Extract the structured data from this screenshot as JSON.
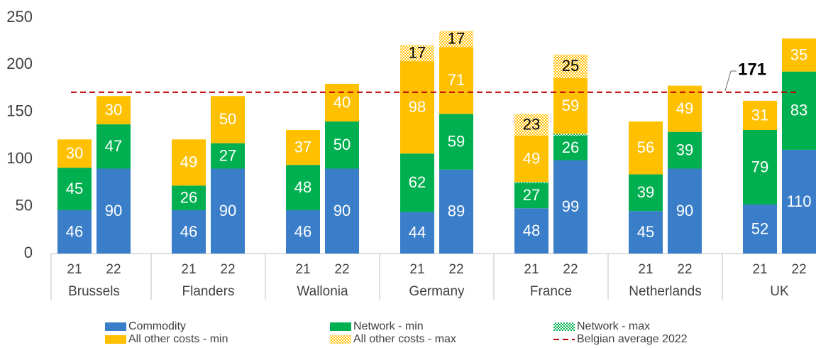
{
  "chart_data": {
    "type": "stacked_bar",
    "categories": [
      "21",
      "22",
      "21",
      "22",
      "21",
      "22",
      "21",
      "22",
      "21",
      "22",
      "21",
      "22",
      "21",
      "22"
    ],
    "groups": [
      "Brussels",
      "Flanders",
      "Wallonia",
      "Germany",
      "France",
      "Netherlands",
      "UK"
    ],
    "series": [
      {
        "name": "Commodity",
        "color": "#3a7dc9",
        "label_color": "#ffffff",
        "values": [
          46,
          90,
          46,
          90,
          46,
          90,
          44,
          89,
          48,
          99,
          45,
          90,
          52,
          110
        ]
      },
      {
        "name": "Network - min",
        "color": "#00b050",
        "label_color": "#ffffff",
        "values": [
          45,
          47,
          26,
          27,
          48,
          50,
          62,
          59,
          27,
          26,
          39,
          39,
          79,
          83
        ]
      },
      {
        "name": "Network - max",
        "color": "#00b050",
        "pattern": true,
        "values": [
          null,
          null,
          null,
          null,
          null,
          null,
          null,
          null,
          1,
          2,
          null,
          null,
          null,
          null
        ]
      },
      {
        "name": "All other costs - min",
        "color": "#ffc000",
        "label_color": "#ffffff",
        "values": [
          30,
          30,
          49,
          50,
          37,
          40,
          98,
          71,
          49,
          59,
          56,
          49,
          31,
          35
        ]
      },
      {
        "name": "All other costs - max",
        "color": "#ffc000",
        "pattern": true,
        "label_color": "#000000",
        "values": [
          null,
          null,
          null,
          null,
          null,
          null,
          17,
          17,
          23,
          25,
          null,
          null,
          null,
          null
        ]
      }
    ],
    "reference_line": {
      "name": "Belgian average 2022",
      "value": 171,
      "color": "#c00000"
    },
    "ylim": [
      0,
      250
    ],
    "yticks": [
      0,
      50,
      100,
      150,
      200,
      250
    ],
    "grid": false
  }
}
